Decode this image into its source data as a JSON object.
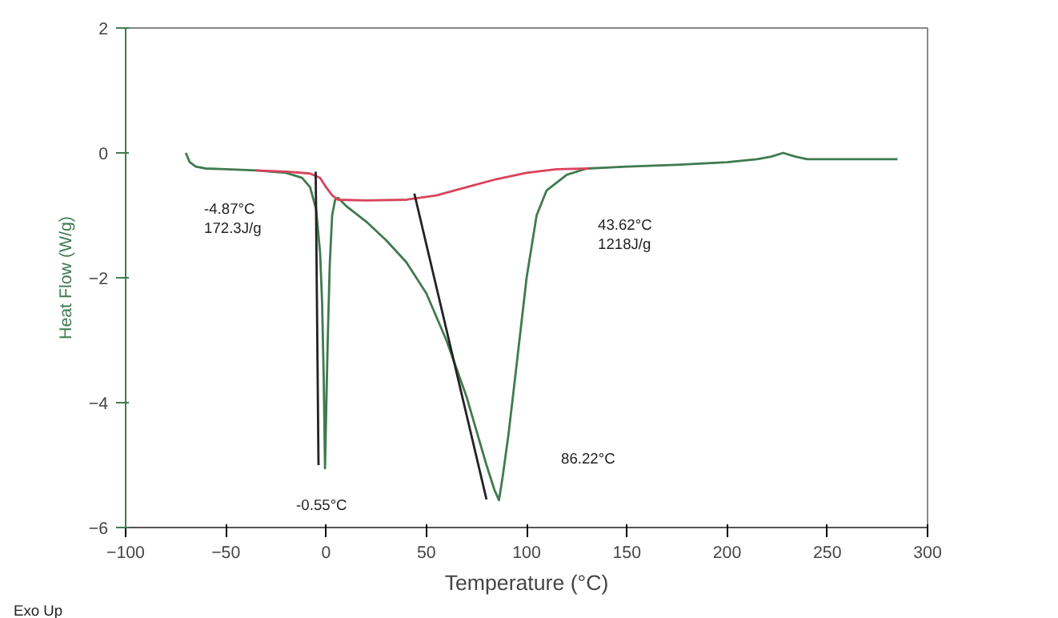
{
  "chart_data": {
    "type": "line",
    "xlabel": "Temperature (°C)",
    "ylabel": "Heat Flow (W/g)",
    "xlim": [
      -100,
      300
    ],
    "ylim": [
      -6,
      2
    ],
    "xticks": [
      -100,
      -50,
      0,
      50,
      100,
      150,
      200,
      250,
      300
    ],
    "yticks": [
      -6,
      -4,
      -2,
      0,
      2
    ],
    "grid": false,
    "marker": "none",
    "line_style": "solid",
    "series": [
      {
        "color": "#3f7a4f",
        "x": [
          -70,
          -68,
          -65,
          -60,
          -50,
          -35,
          -20,
          -12,
          -8,
          -5,
          -3,
          -2,
          -1.2,
          -0.55,
          0,
          0.8,
          1.8,
          3,
          4.5,
          6,
          10,
          20,
          30,
          40,
          50,
          60,
          70,
          75,
          80,
          84,
          86.22,
          88,
          91,
          95,
          100,
          105,
          110,
          120,
          130,
          150,
          175,
          200,
          215,
          222,
          228,
          234,
          240,
          260,
          285
        ],
        "values": [
          0,
          -0.15,
          -0.22,
          -0.25,
          -0.26,
          -0.28,
          -0.32,
          -0.4,
          -0.55,
          -0.9,
          -1.6,
          -2.4,
          -3.6,
          -5.05,
          -4.2,
          -3.0,
          -1.8,
          -1.0,
          -0.75,
          -0.72,
          -0.85,
          -1.1,
          -1.4,
          -1.75,
          -2.25,
          -3.0,
          -3.9,
          -4.45,
          -5.0,
          -5.4,
          -5.56,
          -5.2,
          -4.5,
          -3.4,
          -2.0,
          -1.0,
          -0.6,
          -0.35,
          -0.25,
          -0.22,
          -0.19,
          -0.15,
          -0.1,
          -0.06,
          0.0,
          -0.06,
          -0.1,
          -0.1,
          -0.1
        ]
      },
      {
        "color": "#d9435a",
        "x": [
          -35,
          -20,
          -8,
          -3,
          0,
          3,
          6,
          20,
          40,
          55,
          70,
          85,
          100,
          115,
          131
        ],
        "values": [
          -0.28,
          -0.3,
          -0.33,
          -0.4,
          -0.55,
          -0.68,
          -0.75,
          -0.76,
          -0.75,
          -0.68,
          -0.55,
          -0.42,
          -0.32,
          -0.26,
          -0.25
        ]
      },
      {
        "color": "#222222",
        "x": [
          -5.2,
          -3.8
        ],
        "values": [
          -0.3,
          -5.0
        ]
      },
      {
        "color": "#222222",
        "x": [
          44,
          80
        ],
        "values": [
          -0.65,
          -5.55
        ]
      }
    ],
    "annotations": [
      "-4.87°C\n172.3J/g",
      {
        "text": "-0.55°C",
        "x": -0.55,
        "y": -5.05
      },
      "43.62°C\n1218J/g",
      "86.22°C",
      "Exo Up"
    ]
  }
}
